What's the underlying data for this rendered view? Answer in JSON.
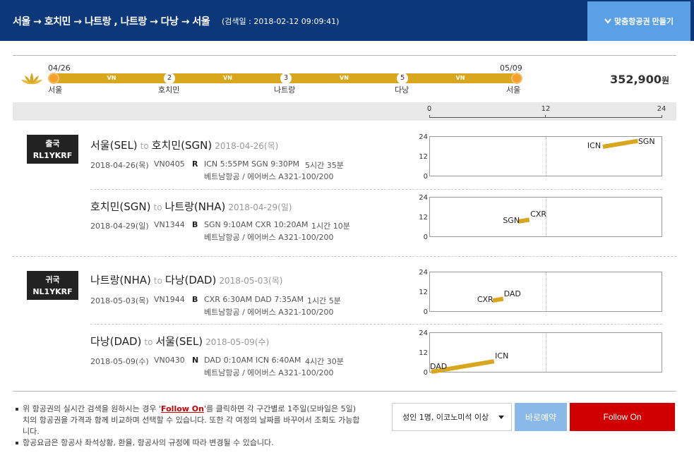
{
  "header": {
    "title": "서울 → 호치민 → 나트랑 , 나트랑 → 다낭 → 서울",
    "search_date": "(검색일 : 2018-02-12 09:09:41)",
    "custom_button": "맞춤항공권 만들기"
  },
  "route": {
    "start_date": "04/26",
    "end_date": "05/09",
    "airline_code": "VN",
    "stops": [
      {
        "name": "서울",
        "day": ""
      },
      {
        "name": "호치민",
        "day": "2"
      },
      {
        "name": "나트랑",
        "day": "3"
      },
      {
        "name": "다낭",
        "day": "5"
      },
      {
        "name": "서울",
        "day": ""
      }
    ],
    "price": "352,900",
    "price_unit": "원"
  },
  "time_axis": {
    "ticks": [
      "0",
      "12",
      "24"
    ]
  },
  "mini_axis": {
    "labels": [
      "24",
      "12",
      "0"
    ]
  },
  "to_word": "to",
  "groups": [
    {
      "direction": "출국",
      "code": "RL1YKRF",
      "segments": [
        {
          "from": "서울(SEL)",
          "to": "호치민(SGN)",
          "date_title": "2018-04-26(목)",
          "date": "2018-04-26(목)",
          "flight": "VN0405",
          "class": "R",
          "times": "ICN 5:55PM SGN 9:30PM",
          "duration": "5시간 35분",
          "aircraft": "베트남항공 / 에어버스 A321-100/200",
          "dep_code": "ICN",
          "arr_code": "SGN",
          "dep_hour": 17.92,
          "arr_hour": 21.5
        },
        {
          "from": "호치민(SGN)",
          "to": "나트랑(NHA)",
          "date_title": "2018-04-29(일)",
          "date": "2018-04-29(일)",
          "flight": "VN1344",
          "class": "B",
          "times": "SGN 9:10AM CXR 10:20AM",
          "duration": "1시간 10분",
          "aircraft": "베트남항공 / 에어버스 A321-100/200",
          "dep_code": "SGN",
          "arr_code": "CXR",
          "dep_hour": 9.17,
          "arr_hour": 10.33
        }
      ]
    },
    {
      "direction": "귀국",
      "code": "NL1YKRF",
      "segments": [
        {
          "from": "나트랑(NHA)",
          "to": "다낭(DAD)",
          "date_title": "2018-05-03(목)",
          "date": "2018-05-03(목)",
          "flight": "VN1944",
          "class": "B",
          "times": "CXR 6:30AM DAD 7:35AM",
          "duration": "1시간 5분",
          "aircraft": "베트남항공 / 에어버스 A321-100/200",
          "dep_code": "CXR",
          "arr_code": "DAD",
          "dep_hour": 6.5,
          "arr_hour": 7.58
        },
        {
          "from": "다낭(DAD)",
          "to": "서울(SEL)",
          "date_title": "2018-05-09(수)",
          "date": "2018-05-09(수)",
          "flight": "VN0430",
          "class": "N",
          "times": "DAD 0:10AM ICN 6:40AM",
          "duration": "4시간 30분",
          "aircraft": "베트남항공 / 에어버스 A321-100/200",
          "dep_code": "DAD",
          "arr_code": "ICN",
          "dep_hour": 0.17,
          "arr_hour": 6.67
        }
      ]
    }
  ],
  "notes": {
    "line1_before": "위 항공권의 실시간 검색을 원하시는 경우 '",
    "line1_link": "Follow On",
    "line1_after": "'를 클릭하면 각 구간별로 1주일(모바일은 5일)치의 항공권을 가격과 함께 비교하며 선택할 수 있습니다. 또한 각 여정의 날짜를 바꾸어서 조회도 가능합니다.",
    "line2": "항공요금은 항공사 좌석상황, 환율, 항공사의 규정에 따라 변경될 수 있습니다."
  },
  "footer": {
    "pax_select": "성인 1명, 이코노미석 이상",
    "book_button": "바로예약",
    "follow_button": "Follow On"
  },
  "colors": {
    "header_bg": "#0c3779",
    "accent_gold": "#d9a71e",
    "follow_red": "#d00000",
    "book_blue": "#8ab8e8"
  }
}
